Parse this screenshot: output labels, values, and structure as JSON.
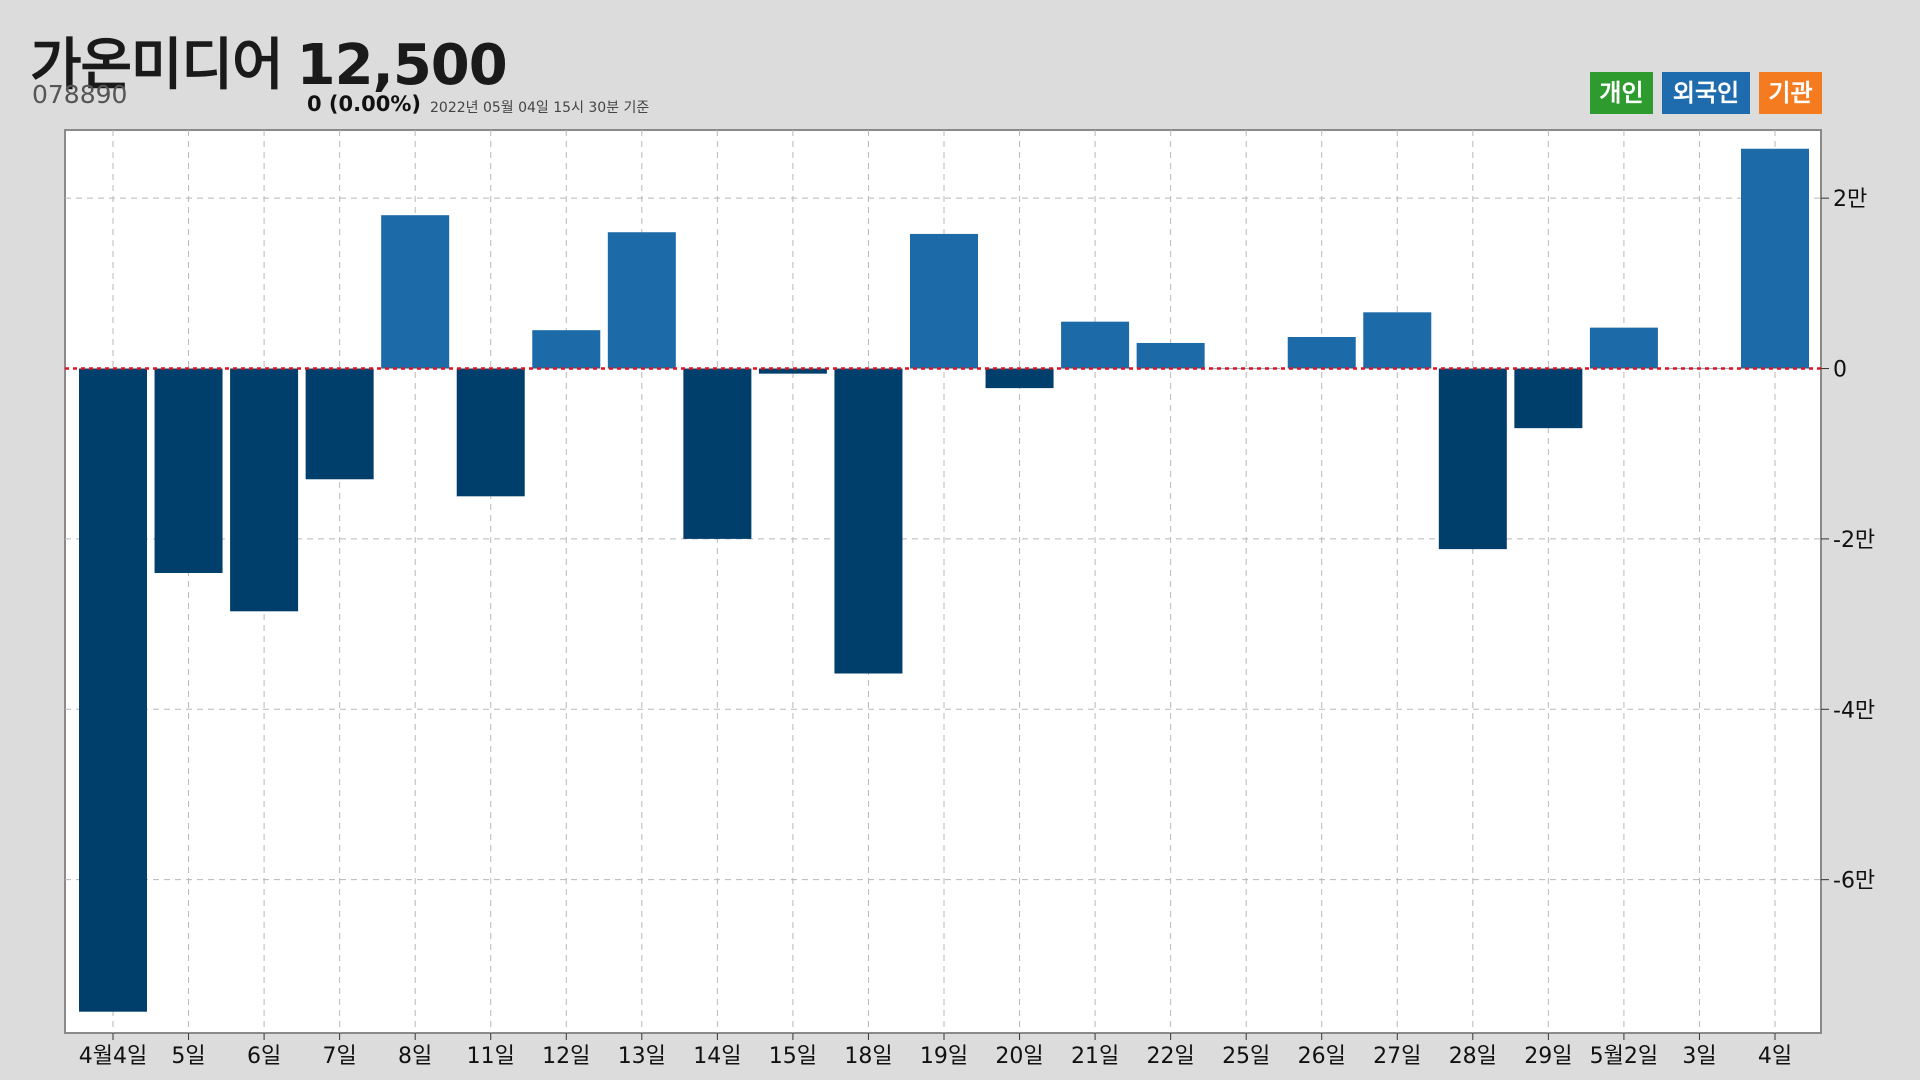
{
  "header": {
    "name": "가온미디어",
    "price": "12,500",
    "code": "078890",
    "change": "0 (0.00%)",
    "as_of": "2022년 05월 04일 15시 30분 기준"
  },
  "legend": [
    {
      "label": "개인",
      "color": "#2e9b2e"
    },
    {
      "label": "외국인",
      "color": "#1e6bae"
    },
    {
      "label": "기관",
      "color": "#f47b20"
    }
  ],
  "colors": {
    "positive_bar": "#1c6aa8",
    "negative_bar": "#003f6b",
    "zero_line": "#e0141e",
    "grid": "#b8b8b8",
    "plot_background": "#ffffff"
  },
  "chart_data": {
    "type": "bar",
    "series": [
      {
        "values": [
          -75500,
          -24000,
          -28500,
          -13000,
          18000,
          -15000,
          4500,
          16000,
          -20000,
          -600,
          -35800,
          15800,
          -2300,
          5500,
          3000,
          0,
          3700,
          6600,
          -21200,
          -7000,
          4800,
          0,
          25800
        ]
      }
    ],
    "categories": [
      "4월4일",
      "5일",
      "6일",
      "7일",
      "8일",
      "11일",
      "12일",
      "13일",
      "14일",
      "15일",
      "18일",
      "19일",
      "20일",
      "21일",
      "22일",
      "25일",
      "26일",
      "27일",
      "28일",
      "29일",
      "5월2일",
      "3일",
      "4일"
    ],
    "y_ticks": [
      {
        "value": 20000,
        "label": "2만"
      },
      {
        "value": 0,
        "label": "0"
      },
      {
        "value": -20000,
        "label": "-2만"
      },
      {
        "value": -40000,
        "label": "-4만"
      },
      {
        "value": -60000,
        "label": "-6만"
      }
    ],
    "ylim": [
      -78000,
      28000
    ],
    "y_axis_position": "right",
    "grid": true,
    "zero_line": "dashed red"
  }
}
